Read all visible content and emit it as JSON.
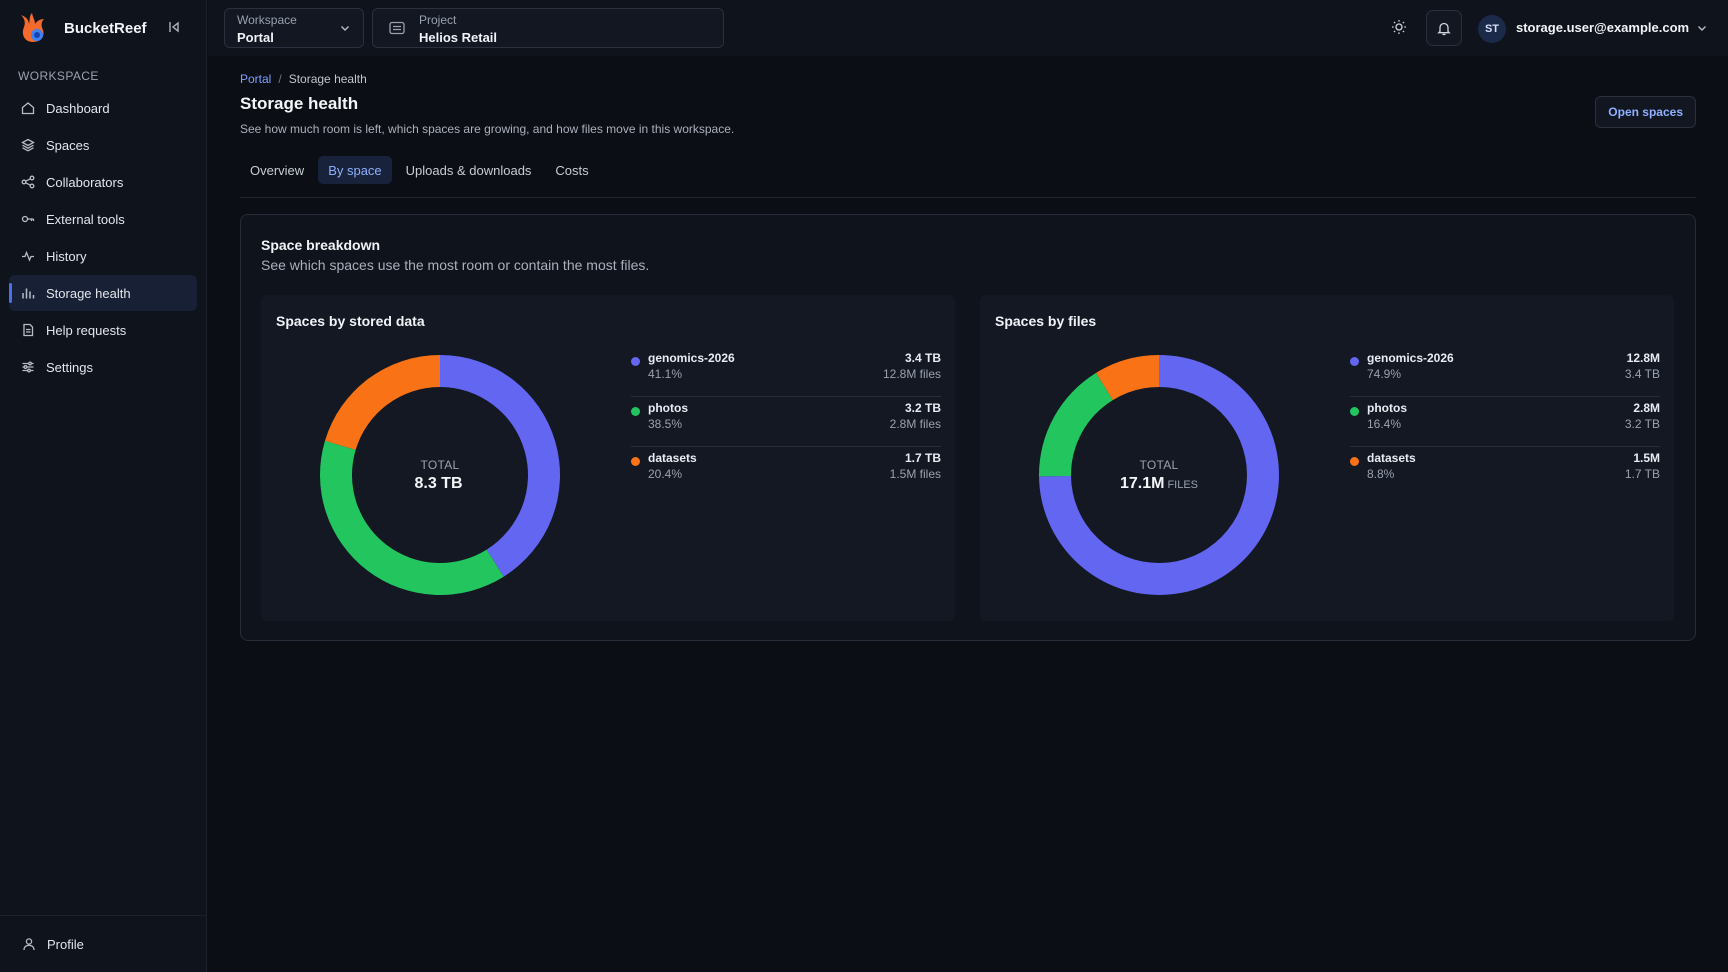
{
  "app": {
    "name": "BucketReef"
  },
  "colors": {
    "accent": "#4b6fe8",
    "blue": "#6366f1",
    "green": "#22c55e",
    "orange": "#f97316"
  },
  "sidebar": {
    "section_label": "WORKSPACE",
    "items": [
      {
        "label": "Dashboard",
        "icon": "home-icon"
      },
      {
        "label": "Spaces",
        "icon": "layers-icon"
      },
      {
        "label": "Collaborators",
        "icon": "share-icon"
      },
      {
        "label": "External tools",
        "icon": "key-icon"
      },
      {
        "label": "History",
        "icon": "activity-icon"
      },
      {
        "label": "Storage health",
        "icon": "bar-chart-icon",
        "active": true
      },
      {
        "label": "Help requests",
        "icon": "document-icon"
      },
      {
        "label": "Settings",
        "icon": "sliders-icon"
      }
    ],
    "bottom_label": "Profile"
  },
  "topbar": {
    "workspace": {
      "label": "Workspace",
      "value": "Portal"
    },
    "project": {
      "label": "Project",
      "value": "Helios Retail"
    },
    "user": {
      "initials": "ST",
      "email": "storage.user@example.com"
    }
  },
  "page": {
    "breadcrumb": {
      "parent": "Portal",
      "separator": "/",
      "current": "Storage health"
    },
    "title": "Storage health",
    "subtitle": "See how much room is left, which spaces are growing, and how files move in this workspace.",
    "action_label": "Open spaces",
    "tabs": [
      {
        "label": "Overview"
      },
      {
        "label": "By space",
        "active": true
      },
      {
        "label": "Uploads & downloads"
      },
      {
        "label": "Costs"
      }
    ]
  },
  "panel": {
    "title": "Space breakdown",
    "subtitle": "See which spaces use the most room or contain the most files."
  },
  "chart_data": [
    {
      "type": "pie",
      "title": "Spaces by stored data",
      "center_label": "TOTAL",
      "center_value": "8.3 TB",
      "center_unit": "",
      "series": [
        {
          "name": "genomics-2026",
          "value": 41.1,
          "pct_label": "41.1%",
          "primary": "3.4 TB",
          "secondary": "12.8M files",
          "color": "#6366f1"
        },
        {
          "name": "photos",
          "value": 38.5,
          "pct_label": "38.5%",
          "primary": "3.2 TB",
          "secondary": "2.8M files",
          "color": "#22c55e"
        },
        {
          "name": "datasets",
          "value": 20.4,
          "pct_label": "20.4%",
          "primary": "1.7 TB",
          "secondary": "1.5M files",
          "color": "#f97316"
        }
      ]
    },
    {
      "type": "pie",
      "title": "Spaces by files",
      "center_label": "TOTAL",
      "center_value": "17.1M",
      "center_unit": "FILES",
      "series": [
        {
          "name": "genomics-2026",
          "value": 74.9,
          "pct_label": "74.9%",
          "primary": "12.8M",
          "secondary": "3.4 TB",
          "color": "#6366f1"
        },
        {
          "name": "photos",
          "value": 16.4,
          "pct_label": "16.4%",
          "primary": "2.8M",
          "secondary": "3.2 TB",
          "color": "#22c55e"
        },
        {
          "name": "datasets",
          "value": 8.8,
          "pct_label": "8.8%",
          "primary": "1.5M",
          "secondary": "1.7 TB",
          "color": "#f97316"
        }
      ]
    }
  ]
}
